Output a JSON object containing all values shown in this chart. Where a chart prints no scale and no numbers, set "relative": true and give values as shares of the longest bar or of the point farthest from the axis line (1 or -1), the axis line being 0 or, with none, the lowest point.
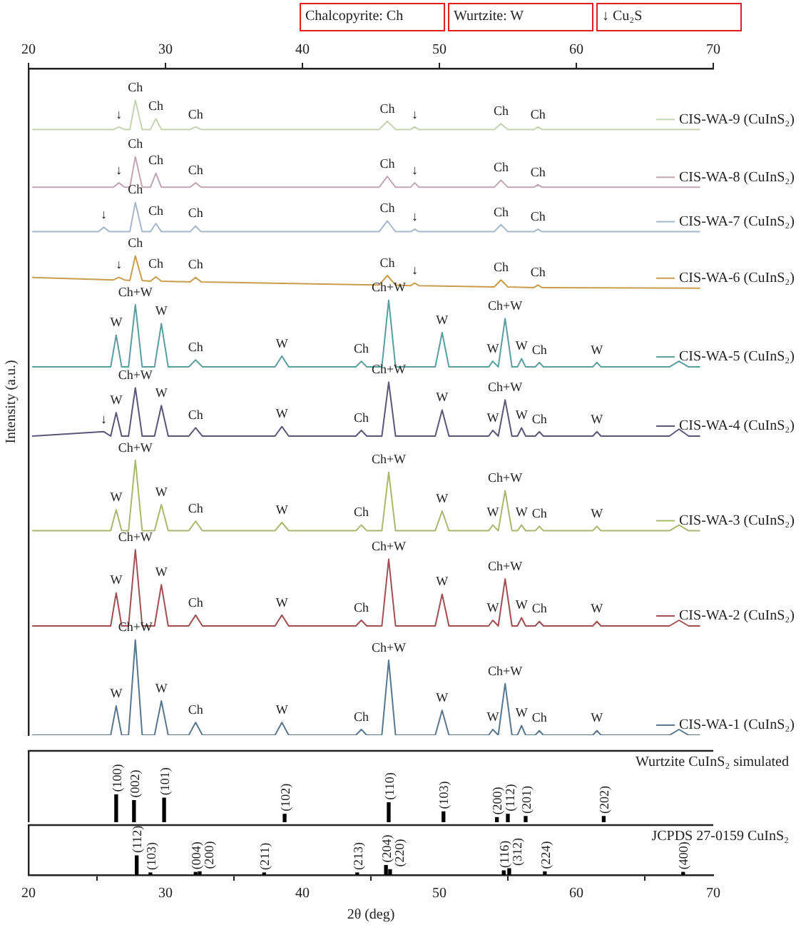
{
  "chart_data": [
    {
      "type": "line",
      "relative": true,
      "legend": "right",
      "ylabel": "Intensity (a.u.)",
      "xlim": [
        20,
        70
      ],
      "xticks": [
        20,
        30,
        40,
        50,
        60,
        70
      ],
      "annotations": [
        "Chalcopyrite: Ch",
        "Wurtzite: W",
        "↓ Cu₂S",
        {
          "text": "Ch",
          "x": 27.8,
          "y": 1.0
        },
        {
          "text": "Ch",
          "x": 29.3,
          "y": 0.971
        },
        {
          "text": "Ch",
          "x": 32.2,
          "y": 0.958
        },
        {
          "text": "Ch",
          "x": 46.2,
          "y": 0.967
        },
        {
          "text": "Ch",
          "x": 54.5,
          "y": 0.963
        },
        {
          "text": "Ch",
          "x": 57.2,
          "y": 0.958
        },
        {
          "text": "↓",
          "x": 26.6,
          "y": 0.958
        },
        {
          "text": "↓",
          "x": 48.2,
          "y": 0.958
        },
        {
          "text": "Ch",
          "x": 27.8,
          "y": 0.911
        },
        {
          "text": "Ch",
          "x": 29.3,
          "y": 0.885
        },
        {
          "text": "Ch",
          "x": 32.2,
          "y": 0.87
        },
        {
          "text": "Ch",
          "x": 46.2,
          "y": 0.88
        },
        {
          "text": "Ch",
          "x": 54.5,
          "y": 0.874
        },
        {
          "text": "Ch",
          "x": 57.2,
          "y": 0.867
        },
        {
          "text": "↓",
          "x": 26.6,
          "y": 0.87
        },
        {
          "text": "↓",
          "x": 48.2,
          "y": 0.87
        },
        {
          "text": "Ch",
          "x": 27.8,
          "y": 0.839
        },
        {
          "text": "Ch",
          "x": 29.3,
          "y": 0.806
        },
        {
          "text": "Ch",
          "x": 32.2,
          "y": 0.802
        },
        {
          "text": "Ch",
          "x": 46.2,
          "y": 0.81
        },
        {
          "text": "Ch",
          "x": 54.5,
          "y": 0.804
        },
        {
          "text": "Ch",
          "x": 57.2,
          "y": 0.797
        },
        {
          "text": "↓",
          "x": 25.5,
          "y": 0.8
        },
        {
          "text": "↓",
          "x": 48.2,
          "y": 0.797
        },
        {
          "text": "Ch",
          "x": 27.8,
          "y": 0.755
        },
        {
          "text": "Ch",
          "x": 29.3,
          "y": 0.722
        },
        {
          "text": "Ch",
          "x": 32.2,
          "y": 0.721
        },
        {
          "text": "Ch",
          "x": 46.2,
          "y": 0.724
        },
        {
          "text": "Ch",
          "x": 54.5,
          "y": 0.717
        },
        {
          "text": "Ch",
          "x": 57.2,
          "y": 0.709
        },
        {
          "text": "↓",
          "x": 26.6,
          "y": 0.721
        },
        {
          "text": "↓",
          "x": 48.2,
          "y": 0.712
        },
        {
          "text": "W",
          "x": 26.4,
          "y": 0.63
        },
        {
          "text": "Ch+W",
          "x": 27.8,
          "y": 0.678
        },
        {
          "text": "W",
          "x": 29.7,
          "y": 0.648
        },
        {
          "text": "Ch",
          "x": 32.2,
          "y": 0.591
        },
        {
          "text": "W",
          "x": 38.5,
          "y": 0.597
        },
        {
          "text": "Ch",
          "x": 44.3,
          "y": 0.589
        },
        {
          "text": "Ch+W",
          "x": 46.3,
          "y": 0.685
        },
        {
          "text": "W",
          "x": 50.2,
          "y": 0.634
        },
        {
          "text": "W",
          "x": 53.9,
          "y": 0.589
        },
        {
          "text": "Ch+W",
          "x": 54.8,
          "y": 0.656
        },
        {
          "text": "W",
          "x": 56.0,
          "y": 0.593
        },
        {
          "text": "Ch",
          "x": 57.3,
          "y": 0.587
        },
        {
          "text": "W",
          "x": 61.5,
          "y": 0.587
        },
        {
          "text": "W",
          "x": 26.4,
          "y": 0.508
        },
        {
          "text": "Ch+W",
          "x": 27.8,
          "y": 0.547
        },
        {
          "text": "W",
          "x": 29.7,
          "y": 0.519
        },
        {
          "text": "Ch",
          "x": 32.2,
          "y": 0.484
        },
        {
          "text": "W",
          "x": 38.5,
          "y": 0.486
        },
        {
          "text": "Ch",
          "x": 44.3,
          "y": 0.48
        },
        {
          "text": "Ch+W",
          "x": 46.3,
          "y": 0.556
        },
        {
          "text": "W",
          "x": 50.2,
          "y": 0.512
        },
        {
          "text": "W",
          "x": 53.9,
          "y": 0.48
        },
        {
          "text": "Ch+W",
          "x": 54.8,
          "y": 0.528
        },
        {
          "text": "W",
          "x": 56.0,
          "y": 0.484
        },
        {
          "text": "Ch",
          "x": 57.3,
          "y": 0.478
        },
        {
          "text": "W",
          "x": 61.5,
          "y": 0.478
        },
        {
          "text": "↓",
          "x": 25.5,
          "y": 0.478
        },
        {
          "text": "W",
          "x": 26.4,
          "y": 0.355
        },
        {
          "text": "Ch+W",
          "x": 27.8,
          "y": 0.433
        },
        {
          "text": "W",
          "x": 29.7,
          "y": 0.363
        },
        {
          "text": "Ch",
          "x": 32.2,
          "y": 0.337
        },
        {
          "text": "W",
          "x": 38.5,
          "y": 0.335
        },
        {
          "text": "Ch",
          "x": 44.3,
          "y": 0.331
        },
        {
          "text": "Ch+W",
          "x": 46.3,
          "y": 0.414
        },
        {
          "text": "W",
          "x": 50.2,
          "y": 0.353
        },
        {
          "text": "W",
          "x": 53.9,
          "y": 0.331
        },
        {
          "text": "Ch+W",
          "x": 54.8,
          "y": 0.385
        },
        {
          "text": "W",
          "x": 56.0,
          "y": 0.331
        },
        {
          "text": "Ch",
          "x": 57.3,
          "y": 0.329
        },
        {
          "text": "W",
          "x": 61.5,
          "y": 0.329
        },
        {
          "text": "W",
          "x": 26.4,
          "y": 0.224
        },
        {
          "text": "Ch+W",
          "x": 27.8,
          "y": 0.292
        },
        {
          "text": "W",
          "x": 29.7,
          "y": 0.237
        },
        {
          "text": "Ch",
          "x": 32.2,
          "y": 0.189
        },
        {
          "text": "W",
          "x": 38.5,
          "y": 0.189
        },
        {
          "text": "Ch",
          "x": 44.3,
          "y": 0.181
        },
        {
          "text": "Ch+W",
          "x": 46.3,
          "y": 0.277
        },
        {
          "text": "W",
          "x": 50.2,
          "y": 0.222
        },
        {
          "text": "W",
          "x": 53.9,
          "y": 0.181
        },
        {
          "text": "Ch+W",
          "x": 54.8,
          "y": 0.246
        },
        {
          "text": "W",
          "x": 56.0,
          "y": 0.185
        },
        {
          "text": "Ch",
          "x": 57.3,
          "y": 0.179
        },
        {
          "text": "W",
          "x": 61.5,
          "y": 0.179
        },
        {
          "text": "W",
          "x": 26.4,
          "y": 0.046
        },
        {
          "text": "Ch+W",
          "x": 27.8,
          "y": 0.15
        },
        {
          "text": "W",
          "x": 29.7,
          "y": 0.054
        },
        {
          "text": "Ch",
          "x": 32.2,
          "y": 0.02
        },
        {
          "text": "W",
          "x": 38.5,
          "y": 0.02
        },
        {
          "text": "Ch",
          "x": 44.3,
          "y": 0.009
        },
        {
          "text": "Ch+W",
          "x": 46.3,
          "y": 0.118
        },
        {
          "text": "W",
          "x": 50.2,
          "y": 0.039
        },
        {
          "text": "W",
          "x": 53.9,
          "y": 0.009
        },
        {
          "text": "Ch+W",
          "x": 54.8,
          "y": 0.081
        },
        {
          "text": "W",
          "x": 56.0,
          "y": 0.015
        },
        {
          "text": "Ch",
          "x": 57.3,
          "y": 0.007
        },
        {
          "text": "W",
          "x": 61.5,
          "y": 0.007
        }
      ],
      "series": [
        {
          "name": "CIS-WA-9 (CuInS₂)",
          "color": "#c5d3b0",
          "x": [
            20.3,
            26.2,
            26.6,
            27.0,
            27.4,
            27.8,
            28.3,
            28.9,
            29.3,
            29.7,
            31.8,
            32.2,
            32.6,
            45.6,
            46.2,
            46.8,
            47.9,
            48.2,
            48.5,
            54.0,
            54.5,
            55.0,
            56.9,
            57.2,
            57.5,
            69.0
          ],
          "values": [
            0.954,
            0.954,
            0.958,
            0.954,
            0.954,
            1.0,
            0.954,
            0.954,
            0.971,
            0.954,
            0.954,
            0.958,
            0.954,
            0.954,
            0.967,
            0.954,
            0.954,
            0.958,
            0.954,
            0.954,
            0.963,
            0.954,
            0.954,
            0.958,
            0.954,
            0.954
          ]
        },
        {
          "name": "CIS-WA-8 (CuInS₂)",
          "color": "#c2a5b3",
          "x": [
            20.3,
            26.2,
            26.6,
            27.0,
            27.4,
            27.8,
            28.3,
            28.9,
            29.3,
            29.7,
            31.8,
            32.2,
            32.6,
            45.6,
            46.2,
            46.8,
            47.9,
            48.2,
            48.5,
            54.0,
            54.5,
            55.0,
            56.9,
            57.2,
            57.5,
            69.0
          ],
          "values": [
            0.863,
            0.863,
            0.87,
            0.863,
            0.863,
            0.911,
            0.863,
            0.863,
            0.885,
            0.863,
            0.863,
            0.87,
            0.863,
            0.863,
            0.88,
            0.863,
            0.863,
            0.87,
            0.863,
            0.863,
            0.874,
            0.863,
            0.863,
            0.867,
            0.863,
            0.863
          ]
        },
        {
          "name": "CIS-WA-7 (CuInS₂)",
          "color": "#a7b7cc",
          "x": [
            20.3,
            25.1,
            25.5,
            25.9,
            27.4,
            27.8,
            28.3,
            28.9,
            29.3,
            29.7,
            31.8,
            32.2,
            32.6,
            45.6,
            46.2,
            46.8,
            47.9,
            48.2,
            48.5,
            54.0,
            54.5,
            55.0,
            56.9,
            57.2,
            57.5,
            69.0
          ],
          "values": [
            0.793,
            0.793,
            0.8,
            0.793,
            0.793,
            0.839,
            0.793,
            0.793,
            0.806,
            0.793,
            0.793,
            0.802,
            0.793,
            0.793,
            0.81,
            0.793,
            0.793,
            0.797,
            0.793,
            0.793,
            0.804,
            0.793,
            0.793,
            0.797,
            0.793,
            0.793
          ]
        },
        {
          "name": "CIS-WA-6 (CuInS₂)",
          "color": "#c99d4e",
          "x": [
            20.3,
            26.2,
            26.6,
            27.0,
            27.4,
            27.8,
            28.3,
            28.9,
            29.3,
            29.7,
            31.8,
            32.2,
            32.6,
            45.6,
            46.2,
            46.8,
            47.9,
            48.2,
            48.5,
            54.0,
            54.5,
            55.0,
            56.9,
            57.2,
            57.5,
            69.0
          ],
          "values": [
            0.721,
            0.717,
            0.721,
            0.717,
            0.716,
            0.755,
            0.716,
            0.715,
            0.722,
            0.715,
            0.714,
            0.721,
            0.714,
            0.709,
            0.724,
            0.709,
            0.708,
            0.712,
            0.708,
            0.706,
            0.717,
            0.706,
            0.705,
            0.709,
            0.705,
            0.704
          ]
        },
        {
          "name": "CIS-WA-5 (CuInS₂)",
          "color": "#5a9e9f",
          "x": [
            20.3,
            25.5,
            26.0,
            26.4,
            26.8,
            27.3,
            27.8,
            28.3,
            29.2,
            29.7,
            30.2,
            31.7,
            32.2,
            32.7,
            38.0,
            38.5,
            39.0,
            43.9,
            44.3,
            44.7,
            45.8,
            46.3,
            46.8,
            49.7,
            50.2,
            50.7,
            53.6,
            53.9,
            54.3,
            54.8,
            55.3,
            55.7,
            56.0,
            56.3,
            57.0,
            57.3,
            57.6,
            61.2,
            61.5,
            61.8,
            66.8,
            67.5,
            68.2,
            69.0
          ],
          "values": [
            0.58,
            0.58,
            0.58,
            0.63,
            0.58,
            0.58,
            0.678,
            0.58,
            0.58,
            0.648,
            0.58,
            0.58,
            0.591,
            0.58,
            0.58,
            0.597,
            0.58,
            0.58,
            0.589,
            0.58,
            0.58,
            0.685,
            0.58,
            0.58,
            0.634,
            0.58,
            0.58,
            0.589,
            0.58,
            0.656,
            0.58,
            0.58,
            0.593,
            0.58,
            0.58,
            0.587,
            0.58,
            0.58,
            0.587,
            0.58,
            0.58,
            0.589,
            0.58,
            0.58
          ]
        },
        {
          "name": "CIS-WA-4 (CuInS₂)",
          "color": "#5b5678",
          "x": [
            20.3,
            25.5,
            26.0,
            26.4,
            26.8,
            27.3,
            27.8,
            28.3,
            29.2,
            29.7,
            30.2,
            31.7,
            32.2,
            32.7,
            38.0,
            38.5,
            39.0,
            43.9,
            44.3,
            44.7,
            45.8,
            46.3,
            46.8,
            49.7,
            50.2,
            50.7,
            53.6,
            53.9,
            54.3,
            54.8,
            55.3,
            55.7,
            56.0,
            56.3,
            57.0,
            57.3,
            57.6,
            61.2,
            61.5,
            61.8,
            66.8,
            67.5,
            68.2,
            69.0
          ],
          "values": [
            0.471,
            0.478,
            0.471,
            0.508,
            0.471,
            0.471,
            0.547,
            0.471,
            0.471,
            0.519,
            0.471,
            0.471,
            0.484,
            0.471,
            0.471,
            0.486,
            0.471,
            0.471,
            0.48,
            0.471,
            0.471,
            0.556,
            0.471,
            0.471,
            0.512,
            0.471,
            0.471,
            0.48,
            0.471,
            0.528,
            0.471,
            0.471,
            0.484,
            0.471,
            0.471,
            0.478,
            0.471,
            0.471,
            0.478,
            0.471,
            0.471,
            0.482,
            0.471,
            0.471
          ]
        },
        {
          "name": "CIS-WA-3 (CuInS₂)",
          "color": "#a9b86f",
          "x": [
            20.3,
            25.5,
            26.0,
            26.4,
            26.8,
            27.3,
            27.8,
            28.3,
            29.2,
            29.7,
            30.2,
            31.7,
            32.2,
            32.7,
            38.0,
            38.5,
            39.0,
            43.9,
            44.3,
            44.7,
            45.8,
            46.3,
            46.8,
            49.7,
            50.2,
            50.7,
            53.6,
            53.9,
            54.3,
            54.8,
            55.3,
            55.7,
            56.0,
            56.3,
            57.0,
            57.3,
            57.6,
            61.2,
            61.5,
            61.8,
            66.8,
            67.5,
            68.2,
            69.0
          ],
          "values": [
            0.322,
            0.322,
            0.322,
            0.355,
            0.322,
            0.322,
            0.433,
            0.322,
            0.322,
            0.363,
            0.322,
            0.322,
            0.337,
            0.322,
            0.322,
            0.335,
            0.322,
            0.322,
            0.331,
            0.322,
            0.322,
            0.414,
            0.322,
            0.322,
            0.353,
            0.322,
            0.322,
            0.331,
            0.322,
            0.385,
            0.322,
            0.322,
            0.331,
            0.322,
            0.322,
            0.329,
            0.322,
            0.322,
            0.329,
            0.322,
            0.322,
            0.331,
            0.322,
            0.322
          ]
        },
        {
          "name": "CIS-WA-2 (CuInS₂)",
          "color": "#a14f52",
          "x": [
            20.3,
            25.5,
            26.0,
            26.4,
            26.8,
            27.3,
            27.8,
            28.3,
            29.2,
            29.7,
            30.2,
            31.7,
            32.2,
            32.7,
            38.0,
            38.5,
            39.0,
            43.9,
            44.3,
            44.7,
            45.8,
            46.3,
            46.8,
            49.7,
            50.2,
            50.7,
            53.6,
            53.9,
            54.3,
            54.8,
            55.3,
            55.7,
            56.0,
            56.3,
            57.0,
            57.3,
            57.6,
            61.2,
            61.5,
            61.8,
            66.8,
            67.5,
            68.2,
            69.0
          ],
          "values": [
            0.172,
            0.172,
            0.172,
            0.224,
            0.172,
            0.172,
            0.292,
            0.172,
            0.172,
            0.237,
            0.172,
            0.172,
            0.189,
            0.172,
            0.172,
            0.189,
            0.172,
            0.172,
            0.181,
            0.172,
            0.172,
            0.277,
            0.172,
            0.172,
            0.222,
            0.172,
            0.172,
            0.181,
            0.172,
            0.246,
            0.172,
            0.172,
            0.185,
            0.172,
            0.172,
            0.179,
            0.172,
            0.172,
            0.179,
            0.172,
            0.172,
            0.181,
            0.172,
            0.172
          ]
        },
        {
          "name": "CIS-WA-1 (CuInS₂)",
          "color": "#58778f",
          "x": [
            20.3,
            25.5,
            26.0,
            26.4,
            26.8,
            27.3,
            27.8,
            28.3,
            29.2,
            29.7,
            30.2,
            31.7,
            32.2,
            32.7,
            38.0,
            38.5,
            39.0,
            43.9,
            44.3,
            44.7,
            45.8,
            46.3,
            46.8,
            49.7,
            50.2,
            50.7,
            53.6,
            53.9,
            54.3,
            54.8,
            55.3,
            55.7,
            56.0,
            56.3,
            57.0,
            57.3,
            57.6,
            61.2,
            61.5,
            61.8,
            66.8,
            67.5,
            68.2,
            69.0
          ],
          "values": [
            0,
            0,
            0,
            0.046,
            0,
            0,
            0.15,
            0,
            0,
            0.054,
            0,
            0,
            0.02,
            0,
            0,
            0.02,
            0,
            0,
            0.009,
            0,
            0,
            0.118,
            0,
            0,
            0.039,
            0,
            0,
            0.009,
            0,
            0.081,
            0,
            0,
            0.015,
            0,
            0,
            0.007,
            0,
            0,
            0.007,
            0,
            0,
            0.009,
            0,
            0
          ]
        }
      ]
    },
    {
      "type": "bar",
      "relative": true,
      "title": "Wurtzite CuInS₂ simulated",
      "tick_labels": false,
      "xlim": [
        20,
        70
      ],
      "color": "#000000",
      "x": [
        26.4,
        27.7,
        29.9,
        38.7,
        46.3,
        50.3,
        54.2,
        55.0,
        56.3,
        62.0
      ],
      "values": [
        1,
        0.79,
        0.88,
        0.29,
        0.71,
        0.38,
        0.17,
        0.29,
        0.21,
        0.21
      ],
      "annotations": [
        {
          "text": "(100)",
          "x": 26.4,
          "y": 1
        },
        {
          "text": "(002)",
          "x": 27.7,
          "y": 0.79
        },
        {
          "text": "(101)",
          "x": 29.9,
          "y": 0.88
        },
        {
          "text": "(102)",
          "x": 38.7,
          "y": 0.29
        },
        {
          "text": "(110)",
          "x": 46.3,
          "y": 0.71
        },
        {
          "text": "(103)",
          "x": 50.3,
          "y": 0.38
        },
        {
          "text": "(200)",
          "x": 54.2,
          "y": 0.17
        },
        {
          "text": "(112)",
          "x": 55.0,
          "y": 0.29
        },
        {
          "text": "(201)",
          "x": 56.3,
          "y": 0.21
        },
        {
          "text": "(202)",
          "x": 62.0,
          "y": 0.21
        }
      ]
    },
    {
      "type": "bar",
      "relative": true,
      "title": "JCPDS 27-0159 CuInS₂",
      "xlabel": "2θ (deg)",
      "xlim": [
        20,
        70
      ],
      "xticks": [
        20,
        30,
        40,
        50,
        60,
        70
      ],
      "color": "#000000",
      "x": [
        27.9,
        28.9,
        32.2,
        32.5,
        37.2,
        44.0,
        46.1,
        46.4,
        54.7,
        55.1,
        57.7,
        67.8
      ],
      "values": [
        1,
        0.11,
        0.14,
        0.17,
        0.11,
        0.11,
        0.5,
        0.28,
        0.22,
        0.33,
        0.17,
        0.14
      ],
      "annotations": [
        {
          "text": "(112)",
          "x": 27.9,
          "y": 1
        },
        {
          "text": "(103)",
          "x": 28.9,
          "y": 0.11
        },
        {
          "text": "(004)",
          "x": 32.2,
          "y": 0.14
        },
        {
          "text": "(200)",
          "x": 32.5,
          "y": 0.17
        },
        {
          "text": "(211)",
          "x": 37.2,
          "y": 0.11
        },
        {
          "text": "(213)",
          "x": 44.0,
          "y": 0.11
        },
        {
          "text": "(204)",
          "x": 46.1,
          "y": 0.5
        },
        {
          "text": "(220)",
          "x": 46.4,
          "y": 0.28
        },
        {
          "text": "(116)",
          "x": 54.7,
          "y": 0.22
        },
        {
          "text": "(312)",
          "x": 55.1,
          "y": 0.33
        },
        {
          "text": "(224)",
          "x": 57.7,
          "y": 0.17
        },
        {
          "text": "(400)",
          "x": 67.8,
          "y": 0.14
        }
      ]
    }
  ]
}
